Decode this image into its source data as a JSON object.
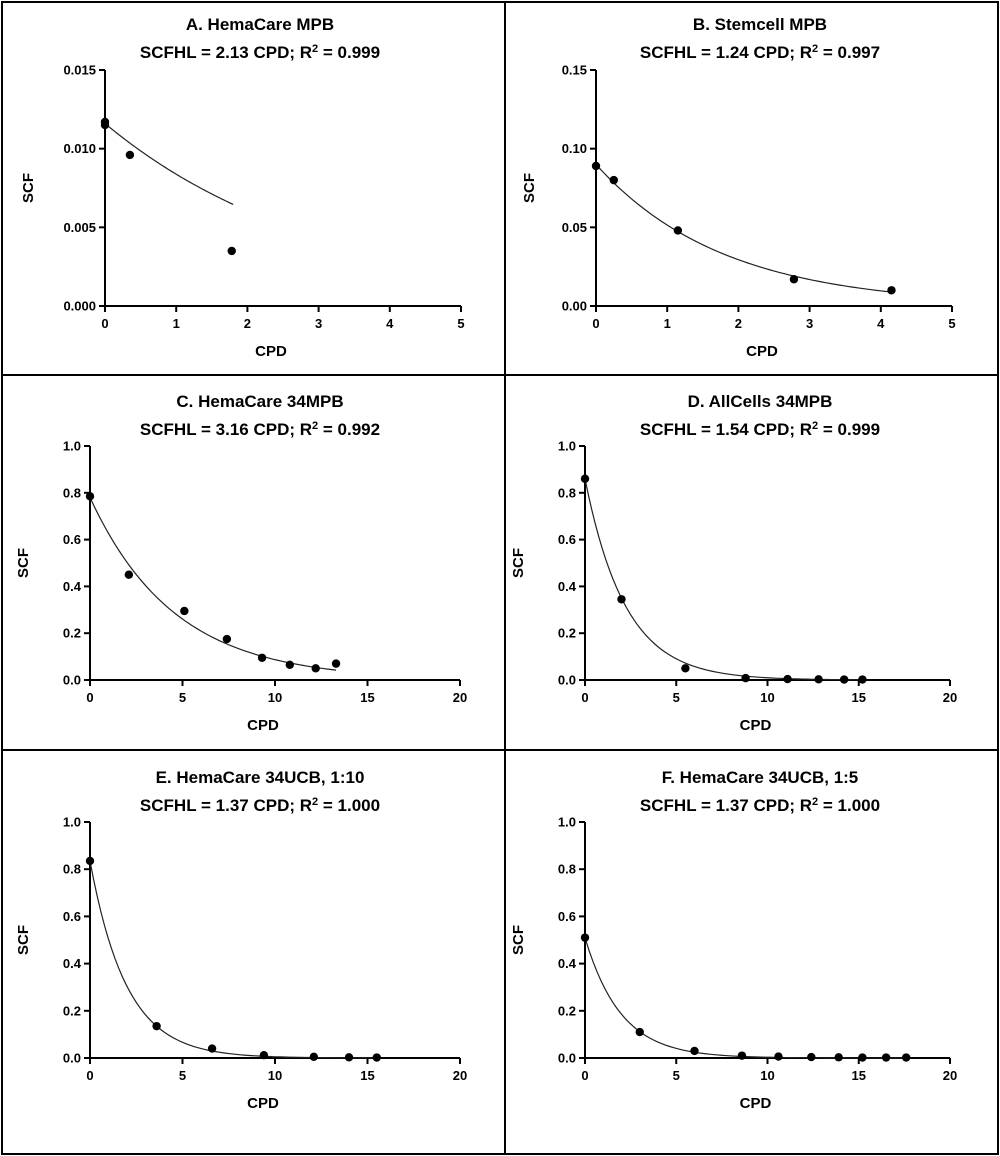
{
  "chart_data": [
    {
      "type": "scatter",
      "title": "A. HemaCare MPB",
      "subtitle_main": "SCFHL = 2.13 CPD; R",
      "subtitle_tail": " = 0.999",
      "xlabel": "CPD",
      "ylabel": "SCF",
      "xlim": [
        0,
        5
      ],
      "ylim": [
        0,
        0.015
      ],
      "xticks": [
        0,
        1,
        2,
        3,
        4,
        5
      ],
      "yticks": [
        0.0,
        0.005,
        0.01,
        0.015
      ],
      "xtick_labels": [
        "0",
        "1",
        "2",
        "3",
        "4",
        "5"
      ],
      "ytick_labels": [
        "0.000",
        "0.005",
        "0.010",
        "0.015"
      ],
      "fit": {
        "a": 0.0116,
        "half_life": 2.13,
        "x_end": 1.8
      },
      "x": [
        0,
        0,
        0.35,
        1.78
      ],
      "y": [
        0.0117,
        0.0115,
        0.0096,
        0.0035
      ]
    },
    {
      "type": "scatter",
      "title": "B. Stemcell MPB",
      "subtitle_main": "SCFHL = 1.24 CPD; R",
      "subtitle_tail": " = 0.997",
      "xlabel": "CPD",
      "ylabel": "SCF",
      "xlim": [
        0,
        5
      ],
      "ylim": [
        0,
        0.15
      ],
      "xticks": [
        0,
        1,
        2,
        3,
        4,
        5
      ],
      "yticks": [
        0.0,
        0.05,
        0.1,
        0.15
      ],
      "xtick_labels": [
        "0",
        "1",
        "2",
        "3",
        "4",
        "5"
      ],
      "ytick_labels": [
        "0.00",
        "0.05",
        "0.10",
        "0.15"
      ],
      "fit": {
        "a": 0.09,
        "half_life": 1.24,
        "x_end": 4.15
      },
      "x": [
        0,
        0.25,
        1.15,
        2.78,
        4.15
      ],
      "y": [
        0.089,
        0.08,
        0.048,
        0.017,
        0.01
      ]
    },
    {
      "type": "scatter",
      "title": "C. HemaCare 34MPB",
      "subtitle_main": "SCFHL = 3.16 CPD; R",
      "subtitle_tail": " = 0.992",
      "xlabel": "CPD",
      "ylabel": "SCF",
      "xlim": [
        0,
        20
      ],
      "ylim": [
        0,
        1.0
      ],
      "xticks": [
        0,
        5,
        10,
        15,
        20
      ],
      "yticks": [
        0.0,
        0.2,
        0.4,
        0.6,
        0.8,
        1.0
      ],
      "xtick_labels": [
        "0",
        "5",
        "10",
        "15",
        "20"
      ],
      "ytick_labels": [
        "0.0",
        "0.2",
        "0.4",
        "0.6",
        "0.8",
        "1.0"
      ],
      "fit": {
        "a": 0.78,
        "half_life": 3.16,
        "x_end": 13.3
      },
      "x": [
        0,
        2.1,
        5.1,
        7.4,
        9.3,
        10.8,
        12.2,
        13.3
      ],
      "y": [
        0.785,
        0.45,
        0.295,
        0.175,
        0.095,
        0.065,
        0.05,
        0.07
      ]
    },
    {
      "type": "scatter",
      "title": "D. AllCells 34MPB",
      "subtitle_main": "SCFHL = 1.54 CPD; R",
      "subtitle_tail": " = 0.999",
      "xlabel": "CPD",
      "ylabel": "SCF",
      "xlim": [
        0,
        20
      ],
      "ylim": [
        0,
        1.0
      ],
      "xticks": [
        0,
        5,
        10,
        15,
        20
      ],
      "yticks": [
        0.0,
        0.2,
        0.4,
        0.6,
        0.8,
        1.0
      ],
      "xtick_labels": [
        "0",
        "5",
        "10",
        "15",
        "20"
      ],
      "ytick_labels": [
        "0.0",
        "0.2",
        "0.4",
        "0.6",
        "0.8",
        "1.0"
      ],
      "fit": {
        "a": 0.86,
        "half_life": 1.54,
        "x_end": 15.2
      },
      "x": [
        0,
        2.0,
        5.5,
        8.8,
        11.1,
        12.8,
        14.2,
        15.2
      ],
      "y": [
        0.86,
        0.345,
        0.05,
        0.008,
        0.004,
        0.003,
        0.002,
        0.002
      ]
    },
    {
      "type": "scatter",
      "title": "E. HemaCare 34UCB, 1:10",
      "subtitle_main": "SCFHL = 1.37 CPD; R",
      "subtitle_tail": " =  1.000",
      "xlabel": "CPD",
      "ylabel": "SCF",
      "xlim": [
        0,
        20
      ],
      "ylim": [
        0,
        1.0
      ],
      "xticks": [
        0,
        5,
        10,
        15,
        20
      ],
      "yticks": [
        0.0,
        0.2,
        0.4,
        0.6,
        0.8,
        1.0
      ],
      "xtick_labels": [
        "0",
        "5",
        "10",
        "15",
        "20"
      ],
      "ytick_labels": [
        "0.0",
        "0.2",
        "0.4",
        "0.6",
        "0.8",
        "1.0"
      ],
      "fit": {
        "a": 0.835,
        "half_life": 1.37,
        "x_end": 15.5
      },
      "x": [
        0,
        3.6,
        6.6,
        9.4,
        12.1,
        14.0,
        15.5
      ],
      "y": [
        0.835,
        0.135,
        0.04,
        0.012,
        0.005,
        0.003,
        0.002
      ]
    },
    {
      "type": "scatter",
      "title": "F. HemaCare 34UCB, 1:5",
      "subtitle_main": "SCFHL = 1.37 CPD; R",
      "subtitle_tail": " = 1.000",
      "xlabel": "CPD",
      "ylabel": "SCF",
      "xlim": [
        0,
        20
      ],
      "ylim": [
        0,
        1.0
      ],
      "xticks": [
        0,
        5,
        10,
        15,
        20
      ],
      "yticks": [
        0.0,
        0.2,
        0.4,
        0.6,
        0.8,
        1.0
      ],
      "xtick_labels": [
        "0",
        "5",
        "10",
        "15",
        "20"
      ],
      "ytick_labels": [
        "0.0",
        "0.2",
        "0.4",
        "0.6",
        "0.8",
        "1.0"
      ],
      "fit": {
        "a": 0.51,
        "half_life": 1.37,
        "x_end": 17.6
      },
      "x": [
        0,
        3.0,
        6.0,
        8.6,
        10.6,
        12.4,
        13.9,
        15.2,
        16.5,
        17.6
      ],
      "y": [
        0.51,
        0.11,
        0.03,
        0.01,
        0.006,
        0.004,
        0.003,
        0.002,
        0.002,
        0.002
      ]
    }
  ]
}
